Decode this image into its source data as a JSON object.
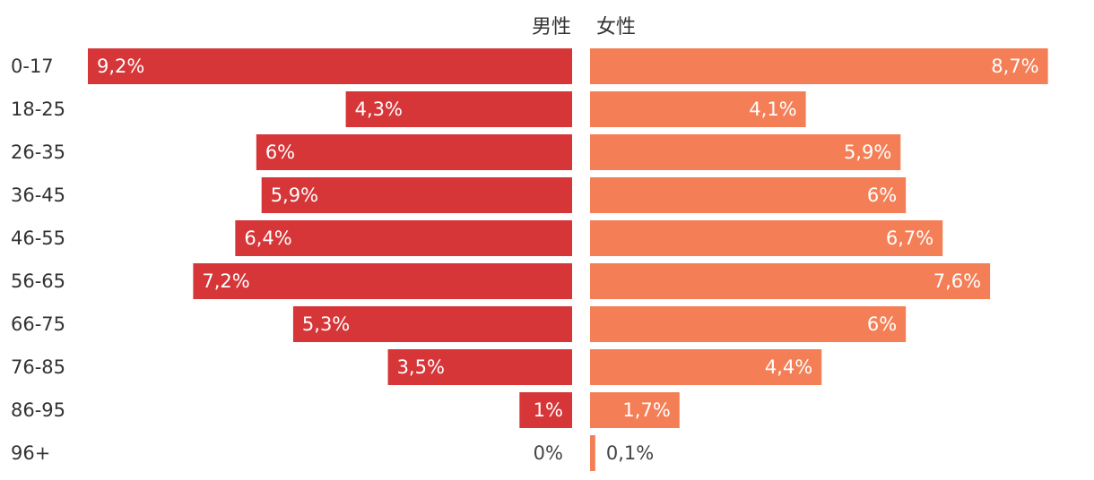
{
  "chart_data": {
    "type": "bar",
    "orientation": "horizontal",
    "layout": "population-pyramid",
    "unit": "%",
    "categories": [
      "0-17",
      "18-25",
      "26-35",
      "36-45",
      "46-55",
      "56-65",
      "66-75",
      "76-85",
      "86-95",
      "96+"
    ],
    "series": [
      {
        "name": "男性",
        "side": "left",
        "color": "#d63638",
        "values": [
          9.2,
          4.3,
          6,
          5.9,
          6.4,
          7.2,
          5.3,
          3.5,
          1,
          0
        ],
        "labels": [
          "9,2%",
          "4,3%",
          "6%",
          "5,9%",
          "6,4%",
          "7,2%",
          "5,3%",
          "3,5%",
          "1%",
          "0%"
        ]
      },
      {
        "name": "女性",
        "side": "right",
        "color": "#f47f57",
        "values": [
          8.7,
          4.1,
          5.9,
          6,
          6.7,
          7.6,
          6,
          4.4,
          1.7,
          0.1
        ],
        "labels": [
          "8,7%",
          "4,1%",
          "5,9%",
          "6%",
          "6,7%",
          "7,6%",
          "6%",
          "4,4%",
          "1,7%",
          "0,1%"
        ]
      }
    ],
    "xlim": [
      0,
      9.2
    ],
    "grid": false,
    "legend": "top-center"
  }
}
